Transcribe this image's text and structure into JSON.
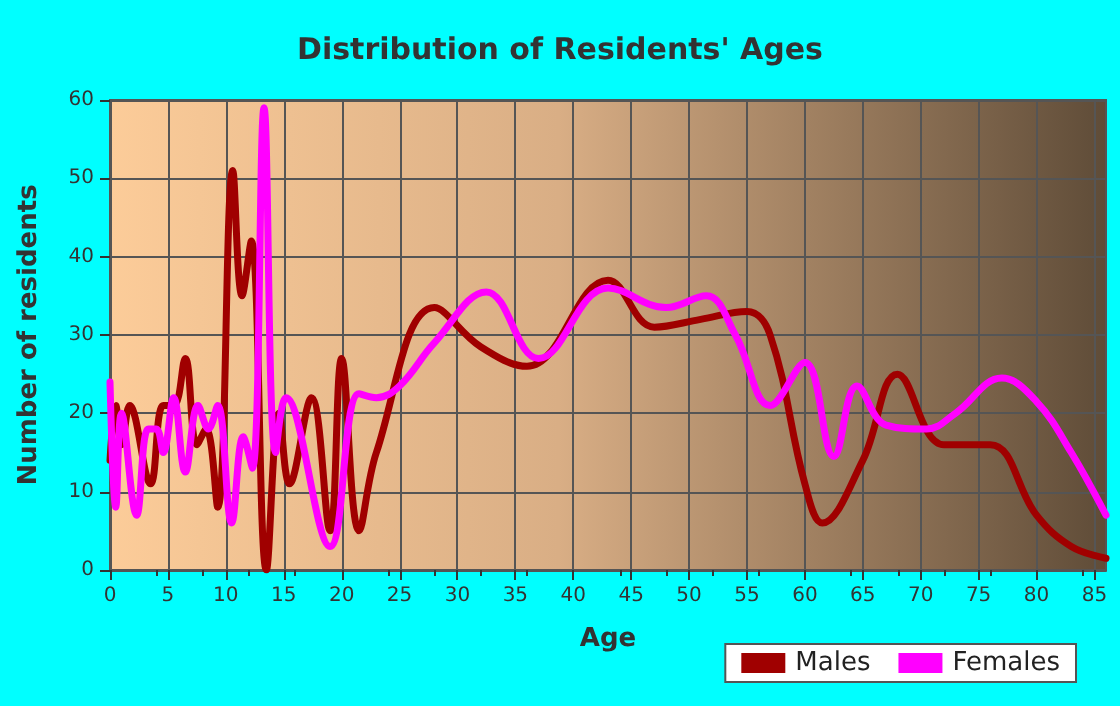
{
  "chart_data": {
    "type": "line",
    "title": "Distribution of Residents' Ages",
    "xlabel": "Age",
    "ylabel": "Number of residents",
    "xlim": [
      0,
      86
    ],
    "xticks": [
      0,
      5,
      10,
      15,
      20,
      25,
      30,
      35,
      40,
      45,
      50,
      55,
      60,
      65,
      70,
      75,
      80,
      85
    ],
    "ylim": [
      0,
      60
    ],
    "yticks": [
      0,
      10,
      20,
      30,
      40,
      50,
      60
    ],
    "grid": true,
    "legend": "bottom right",
    "marker": "none",
    "line_style": "solid",
    "series": [
      {
        "name": "Males",
        "color": "#a00000",
        "x": [
          0,
          0.5,
          1,
          1.7,
          3.5,
          4.6,
          5.5,
          6.5,
          7.5,
          8.3,
          9.3,
          10.6,
          11.4,
          12.2,
          13.5,
          14.6,
          15.5,
          17.4,
          19,
          20,
          21.5,
          23,
          28,
          32,
          36,
          43,
          47,
          51,
          55,
          57,
          60,
          61.5,
          65,
          68,
          72,
          76,
          80,
          83,
          86
        ],
        "values": [
          14,
          21,
          16,
          21,
          11,
          21,
          21,
          27,
          16,
          18,
          8,
          51,
          35,
          42,
          0,
          20,
          11,
          22,
          5,
          27,
          5,
          15,
          33.5,
          28.5,
          26,
          37,
          31,
          32,
          33,
          30,
          11,
          6,
          14,
          25,
          16,
          16,
          7,
          3,
          1.5
        ]
      },
      {
        "name": "Females",
        "color": "#ff00ff",
        "x": [
          0,
          0.5,
          1,
          2.3,
          3.3,
          4,
          4.6,
          5.5,
          6.5,
          7.6,
          8.5,
          9.3,
          10.5,
          11.5,
          12.3,
          13.3,
          14.3,
          15.2,
          19,
          21.5,
          23,
          25,
          28,
          32.5,
          37,
          43,
          48,
          51.5,
          54,
          57,
          60,
          62.5,
          64.5,
          67,
          70.5,
          73,
          77,
          80,
          83,
          86
        ],
        "values": [
          24,
          8,
          20,
          7,
          18,
          18,
          15,
          22,
          12.5,
          21,
          18,
          21,
          6,
          17,
          13,
          59,
          15,
          22,
          3,
          22.5,
          22,
          23.5,
          29,
          35.5,
          27,
          36,
          33.5,
          35,
          30,
          21,
          26.5,
          14.5,
          23.5,
          18.5,
          18,
          20,
          24.5,
          21.5,
          15,
          7
        ]
      }
    ]
  }
}
